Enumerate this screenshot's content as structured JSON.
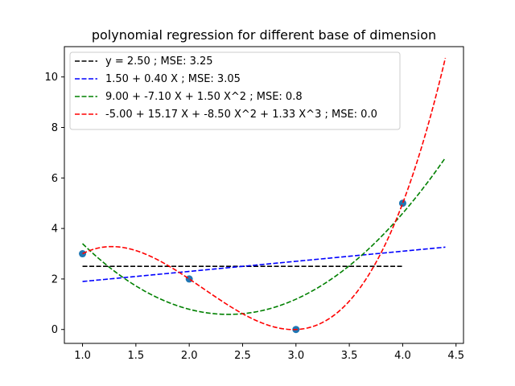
{
  "chart_data": {
    "type": "line",
    "title": "polynomial regression for different base of dimension",
    "xlabel": "",
    "ylabel": "",
    "xlim": [
      0.83,
      4.57
    ],
    "ylim": [
      -0.55,
      11.2
    ],
    "x_ticks": [
      1.0,
      1.5,
      2.0,
      2.5,
      3.0,
      3.5,
      4.0,
      4.5
    ],
    "x_tick_labels": [
      "1.0",
      "1.5",
      "2.0",
      "2.5",
      "3.0",
      "3.5",
      "4.0",
      "4.5"
    ],
    "y_ticks": [
      0,
      2,
      4,
      6,
      8,
      10
    ],
    "y_tick_labels": [
      "0",
      "2",
      "4",
      "6",
      "8",
      "10"
    ],
    "grid": false,
    "legend_position": "upper-left",
    "points": {
      "x": [
        1,
        2,
        3,
        4
      ],
      "y": [
        3,
        2,
        0,
        5
      ],
      "color": "#1f77b4"
    },
    "series": [
      {
        "name": "y = 2.50 ; MSE: 3.25",
        "color": "#000000",
        "coefficients": [
          2.5
        ],
        "x_range": [
          1.0,
          4.0
        ]
      },
      {
        "name": "1.50 + 0.40 X ; MSE: 3.05",
        "color": "#0000ff",
        "coefficients": [
          1.5,
          0.4
        ],
        "x_range": [
          1.0,
          4.4
        ]
      },
      {
        "name": "9.00 + -7.10 X + 1.50 X^2 ; MSE: 0.8",
        "color": "#008000",
        "coefficients": [
          9.0,
          -7.1,
          1.5
        ],
        "x_range": [
          1.0,
          4.4
        ]
      },
      {
        "name": "-5.00 + 15.17 X + -8.50 X^2 + 1.33 X^3 ; MSE: 0.0",
        "color": "#ff0000",
        "coefficients": [
          -5.0,
          15.1667,
          -8.5,
          1.3333
        ],
        "x_range": [
          1.0,
          4.4
        ]
      }
    ]
  }
}
